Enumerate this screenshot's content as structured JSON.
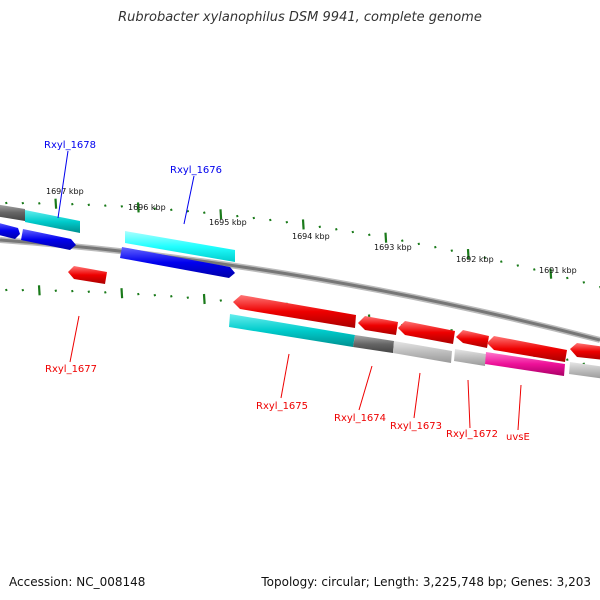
{
  "title": "Rubrobacter xylanophilus DSM 9941, complete genome",
  "footer": {
    "accession": "Accession: NC_008148",
    "summary": "Topology: circular; Length: 3,225,748 bp; Genes: 3,203"
  },
  "colors": {
    "forward_gene": "#0000ee",
    "reverse_gene": "#ee0000",
    "cyan": "#00cccc",
    "grey": "#777777",
    "pink": "#ee1199",
    "tick": "#1a7a1a",
    "backbone": "#808080"
  },
  "kbp_labels": [
    "1697 kbp",
    "1696 kbp",
    "1695 kbp",
    "1694 kbp",
    "1693 kbp",
    "1692 kbp",
    "1691 kbp"
  ],
  "gene_labels": {
    "forward": [
      "Rxyl_1678",
      "Rxyl_1676"
    ],
    "reverse": [
      "Rxyl_1677",
      "Rxyl_1675",
      "Rxyl_1674",
      "Rxyl_1673",
      "Rxyl_1672",
      "uvsE"
    ]
  }
}
